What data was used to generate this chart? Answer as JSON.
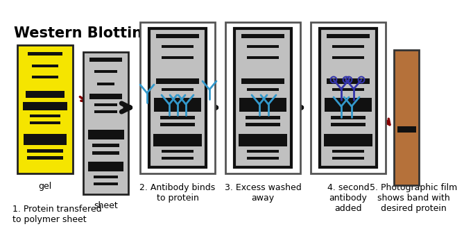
{
  "title": "Western Blotting",
  "bg_color": "#ffffff",
  "gel_color": "#f5e500",
  "sheet_color": "#c0c0c0",
  "band_color": "#111111",
  "film_color": "#b5713a",
  "arrow_color": "#111111",
  "red_arrow_color": "#880000",
  "blue_color": "#3399cc",
  "purple_color": "#4433aa",
  "frame_outer": "#555555",
  "frame_inner": "#111111",
  "labels": [
    "gel",
    "sheet",
    "2. Antibody binds\nto protein",
    "3. Excess washed\naway",
    "4. second\nantibody\nadded",
    "5. Photographic film\nshows band with\ndesired protein",
    "1. Protein transfered\nto polymer sheet"
  ]
}
